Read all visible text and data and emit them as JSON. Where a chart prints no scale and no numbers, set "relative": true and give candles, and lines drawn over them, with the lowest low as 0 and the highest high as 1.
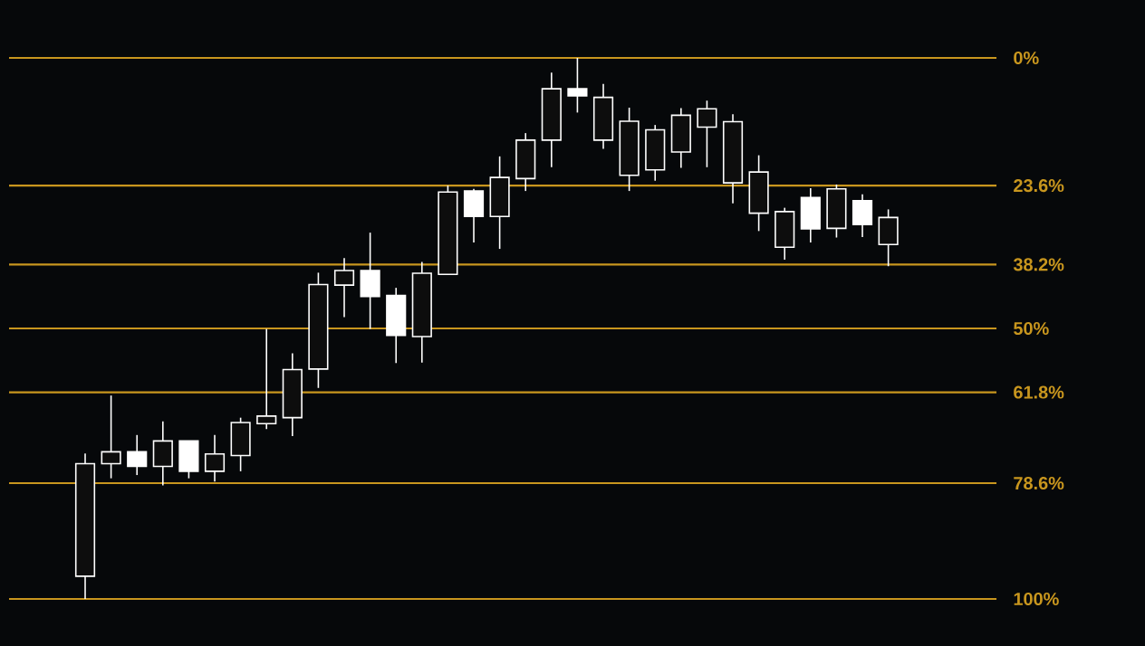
{
  "chart_data": {
    "type": "candlestick",
    "relative": true,
    "categories": [
      null,
      null,
      null,
      null,
      null,
      null,
      null,
      null,
      null,
      null,
      null,
      null,
      null,
      null,
      null,
      null,
      null,
      null,
      null,
      null,
      null,
      null,
      null,
      null,
      null,
      null,
      null,
      null,
      null,
      null,
      null,
      null
    ],
    "ohlc": [
      [
        0.042,
        0.269,
        0,
        0.25
      ],
      [
        0.25,
        0.376,
        0.223,
        0.272
      ],
      [
        0.272,
        0.303,
        0.229,
        0.245
      ],
      [
        0.245,
        0.328,
        0.21,
        0.292
      ],
      [
        0.292,
        0.292,
        0.223,
        0.236
      ],
      [
        0.236,
        0.303,
        0.217,
        0.268
      ],
      [
        0.265,
        0.335,
        0.236,
        0.326
      ],
      [
        0.324,
        0.499,
        0.314,
        0.338
      ],
      [
        0.335,
        0.454,
        0.301,
        0.424
      ],
      [
        0.425,
        0.603,
        0.39,
        0.581
      ],
      [
        0.58,
        0.63,
        0.521,
        0.607
      ],
      [
        0.607,
        0.677,
        0.499,
        0.559
      ],
      [
        0.561,
        0.575,
        0.436,
        0.487
      ],
      [
        0.485,
        0.623,
        0.437,
        0.602
      ],
      [
        0.6,
        0.764,
        0.6,
        0.752
      ],
      [
        0.754,
        0.758,
        0.659,
        0.707
      ],
      [
        0.707,
        0.818,
        0.647,
        0.779
      ],
      [
        0.777,
        0.861,
        0.754,
        0.848
      ],
      [
        0.848,
        0.973,
        0.798,
        0.943
      ],
      [
        0.943,
        1,
        0.899,
        0.93
      ],
      [
        0.848,
        0.952,
        0.832,
        0.927
      ],
      [
        0.783,
        0.908,
        0.754,
        0.883
      ],
      [
        0.793,
        0.876,
        0.773,
        0.867
      ],
      [
        0.826,
        0.907,
        0.797,
        0.894
      ],
      [
        0.872,
        0.921,
        0.798,
        0.906
      ],
      [
        0.769,
        0.896,
        0.731,
        0.882
      ],
      [
        0.713,
        0.82,
        0.68,
        0.789
      ],
      [
        0.65,
        0.723,
        0.627,
        0.716
      ],
      [
        0.742,
        0.759,
        0.659,
        0.684
      ],
      [
        0.685,
        0.766,
        0.668,
        0.758
      ],
      [
        0.736,
        0.748,
        0.669,
        0.692
      ],
      [
        0.655,
        0.72,
        0.615,
        0.705
      ]
    ],
    "ref_lines": [
      {
        "axis": "y",
        "value": 1,
        "color": "#c8961e"
      },
      {
        "axis": "y",
        "value": 0.764,
        "color": "#c8961e"
      },
      {
        "axis": "y",
        "value": 0.618,
        "color": "#c8961e"
      },
      {
        "axis": "y",
        "value": 0.5,
        "color": "#c8961e"
      },
      {
        "axis": "y",
        "value": 0.382,
        "color": "#c8961e"
      },
      {
        "axis": "y",
        "value": 0.214,
        "color": "#c8961e"
      },
      {
        "axis": "y",
        "value": 0,
        "color": "#c8961e"
      }
    ],
    "annotations": [
      "0%",
      "23.6%",
      "38.2%",
      "50%",
      "61.8%",
      "78.6%",
      "100%"
    ]
  }
}
